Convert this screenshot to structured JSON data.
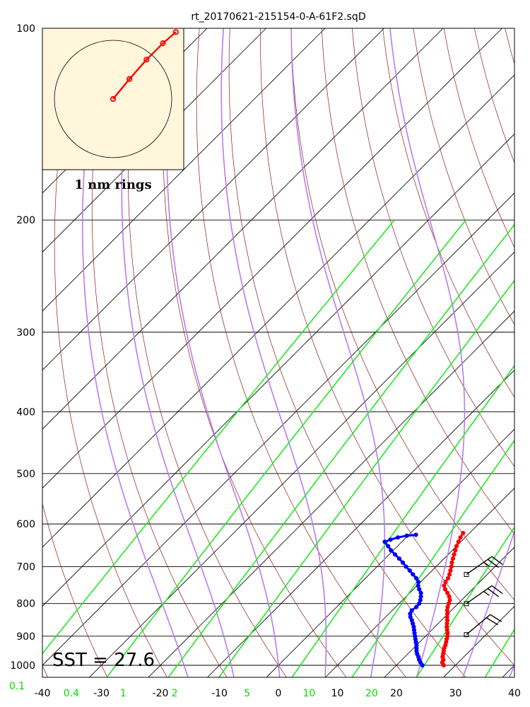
{
  "chart_data": {
    "type": "skew-t log-p sounding",
    "title": "rt_20170621-215154-0-A-61F2.sqD",
    "pressure_ticks": [
      100,
      200,
      300,
      400,
      500,
      600,
      700,
      800,
      900,
      1000
    ],
    "temperature_ticks": [
      -40,
      -30,
      -20,
      -10,
      0,
      10,
      20,
      30,
      40
    ],
    "mixing_ratio_ticks": [
      {
        "label": "0.1",
        "t": -44.3
      },
      {
        "label": "0.4",
        "t": -35.1
      },
      {
        "label": "1",
        "t": -26.3
      },
      {
        "label": "2",
        "t": -17.6
      },
      {
        "label": "5",
        "t": -5.3
      },
      {
        "label": "10",
        "t": 5.2
      },
      {
        "label": "20",
        "t": 15.8
      }
    ],
    "ylim": [
      1000,
      100
    ],
    "xlim_at_1000hpa": [
      -40,
      40
    ],
    "sst_label": "SST = 27.6",
    "temperature_profile": [
      {
        "p": 1000,
        "t": 28.0
      },
      {
        "p": 990,
        "t": 27.3
      },
      {
        "p": 980,
        "t": 27.0
      },
      {
        "p": 970,
        "t": 26.4
      },
      {
        "p": 960,
        "t": 26.0
      },
      {
        "p": 950,
        "t": 25.6
      },
      {
        "p": 940,
        "t": 25.2
      },
      {
        "p": 930,
        "t": 24.9
      },
      {
        "p": 920,
        "t": 24.5
      },
      {
        "p": 910,
        "t": 24.1
      },
      {
        "p": 900,
        "t": 23.7
      },
      {
        "p": 890,
        "t": 23.2
      },
      {
        "p": 880,
        "t": 22.6
      },
      {
        "p": 870,
        "t": 22.0
      },
      {
        "p": 860,
        "t": 21.5
      },
      {
        "p": 850,
        "t": 21.0
      },
      {
        "p": 840,
        "t": 20.4
      },
      {
        "p": 830,
        "t": 19.9
      },
      {
        "p": 820,
        "t": 19.3
      },
      {
        "p": 810,
        "t": 18.8
      },
      {
        "p": 800,
        "t": 18.4
      },
      {
        "p": 790,
        "t": 18.0
      },
      {
        "p": 780,
        "t": 17.3
      },
      {
        "p": 770,
        "t": 16.4
      },
      {
        "p": 760,
        "t": 15.4
      },
      {
        "p": 750,
        "t": 14.6
      },
      {
        "p": 740,
        "t": 14.2
      },
      {
        "p": 730,
        "t": 14.0
      },
      {
        "p": 720,
        "t": 13.6
      },
      {
        "p": 710,
        "t": 13.1
      },
      {
        "p": 700,
        "t": 12.6
      },
      {
        "p": 690,
        "t": 12.0
      },
      {
        "p": 680,
        "t": 11.5
      },
      {
        "p": 670,
        "t": 11.0
      },
      {
        "p": 660,
        "t": 10.5
      },
      {
        "p": 650,
        "t": 10.0
      },
      {
        "p": 640,
        "t": 9.6
      },
      {
        "p": 630,
        "t": 9.2
      },
      {
        "p": 620,
        "t": 8.9
      }
    ],
    "dewpoint_profile": [
      {
        "p": 1000,
        "t": 24.4
      },
      {
        "p": 990,
        "t": 23.6
      },
      {
        "p": 980,
        "t": 22.9
      },
      {
        "p": 970,
        "t": 22.3
      },
      {
        "p": 960,
        "t": 21.6
      },
      {
        "p": 950,
        "t": 21.0
      },
      {
        "p": 940,
        "t": 20.5
      },
      {
        "p": 930,
        "t": 20.0
      },
      {
        "p": 920,
        "t": 19.4
      },
      {
        "p": 910,
        "t": 18.8
      },
      {
        "p": 900,
        "t": 18.2
      },
      {
        "p": 890,
        "t": 17.6
      },
      {
        "p": 880,
        "t": 17.0
      },
      {
        "p": 870,
        "t": 16.4
      },
      {
        "p": 860,
        "t": 15.7
      },
      {
        "p": 850,
        "t": 15.0
      },
      {
        "p": 840,
        "t": 14.2
      },
      {
        "p": 830,
        "t": 13.6
      },
      {
        "p": 820,
        "t": 13.3
      },
      {
        "p": 810,
        "t": 13.5
      },
      {
        "p": 800,
        "t": 13.4
      },
      {
        "p": 790,
        "t": 13.0
      },
      {
        "p": 780,
        "t": 12.5
      },
      {
        "p": 770,
        "t": 11.9
      },
      {
        "p": 760,
        "t": 11.0
      },
      {
        "p": 750,
        "t": 10.2
      },
      {
        "p": 740,
        "t": 9.6
      },
      {
        "p": 730,
        "t": 8.6
      },
      {
        "p": 720,
        "t": 7.4
      },
      {
        "p": 710,
        "t": 6.2
      },
      {
        "p": 700,
        "t": 4.9
      },
      {
        "p": 690,
        "t": 3.7
      },
      {
        "p": 680,
        "t": 2.4
      },
      {
        "p": 670,
        "t": 1.0
      },
      {
        "p": 660,
        "t": -0.4
      },
      {
        "p": 650,
        "t": -1.6
      },
      {
        "p": 640,
        "t": -2.9
      },
      {
        "p": 635,
        "t": -2.3
      },
      {
        "p": 630,
        "t": -1.4
      },
      {
        "p": 626,
        "t": -0.2
      },
      {
        "p": 624,
        "t": 1.2
      }
    ],
    "wind_barbs": [
      {
        "p": 720,
        "direction_deg": 235,
        "speed_kt": 25
      },
      {
        "p": 800,
        "direction_deg": 235,
        "speed_kt": 25
      },
      {
        "p": 895,
        "direction_deg": 230,
        "speed_kt": 20
      }
    ],
    "hodograph": {
      "label": "1 nm rings",
      "ring_radius_nm": 1,
      "points": [
        {
          "u": 0.0,
          "v": 0.0
        },
        {
          "u": 0.28,
          "v": 0.34
        },
        {
          "u": 0.57,
          "v": 0.67
        },
        {
          "u": 0.85,
          "v": 0.95
        },
        {
          "u": 1.07,
          "v": 1.14
        }
      ]
    },
    "colors": {
      "isotherms": "#000000",
      "dry_adiabats": "#8b1a1a",
      "moist_adiabats": "#b87cf0",
      "mixing_ratio": "#22e822",
      "temperature": "#ff0000",
      "dewpoint": "#0000ff",
      "hodograph_background": "#fff6dc",
      "hodograph_trace": "#ff0000"
    }
  }
}
